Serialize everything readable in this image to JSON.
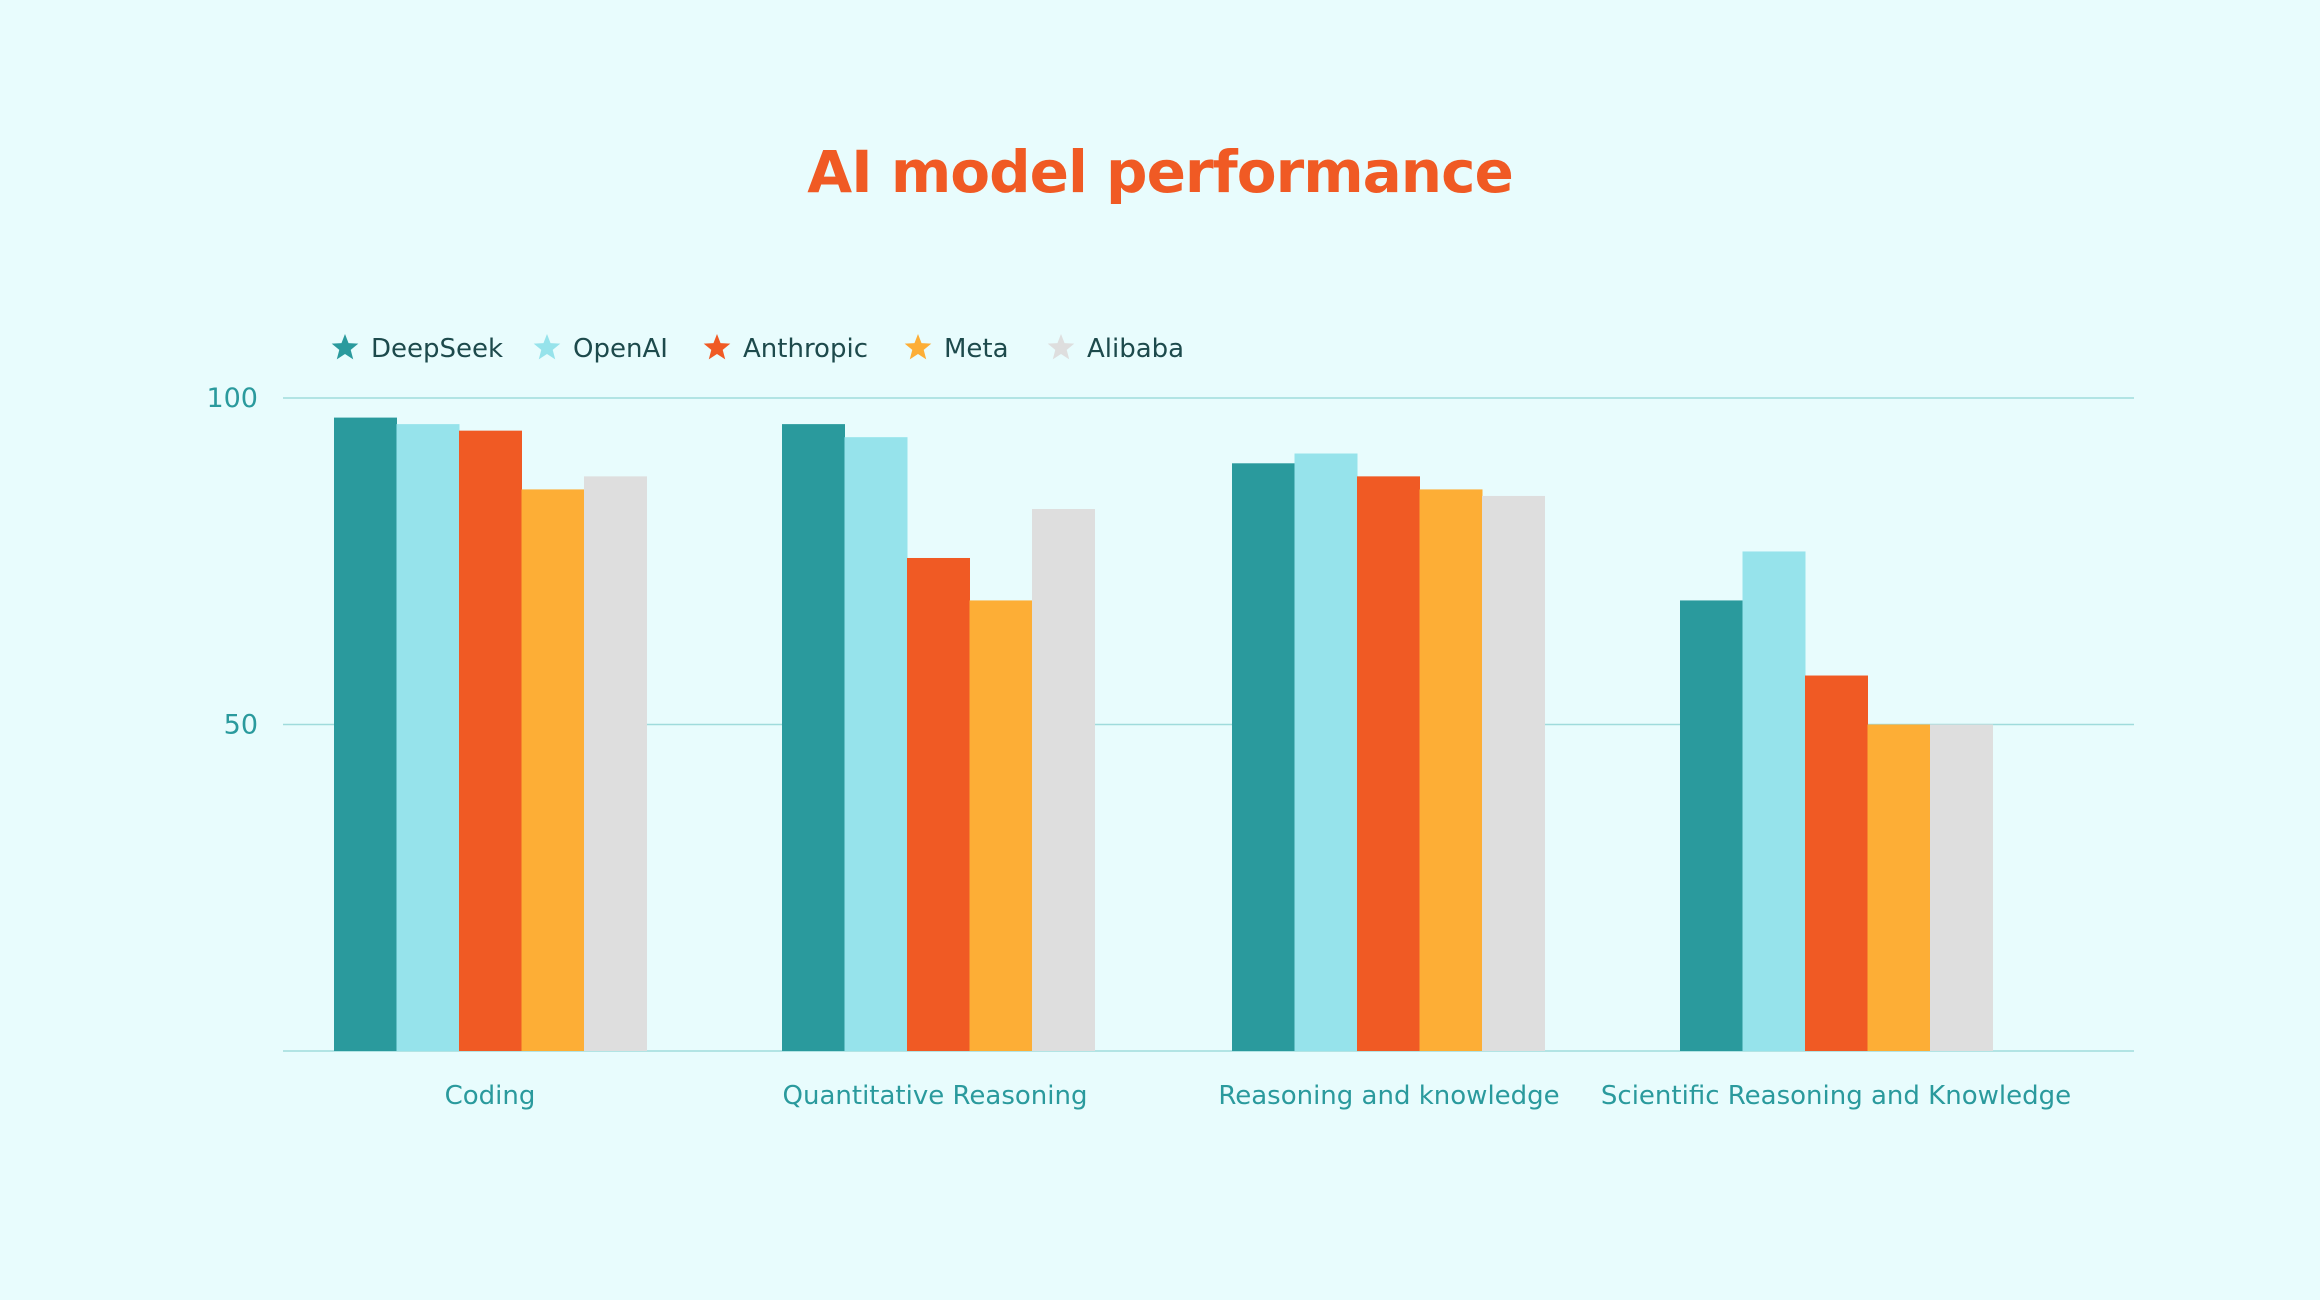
{
  "chart_data": {
    "type": "bar",
    "title": "AI model performance",
    "xlabel": "",
    "ylabel": "",
    "ylim": [
      0,
      100
    ],
    "yticks": [
      50,
      100
    ],
    "grid": true,
    "legend_position": "top-left",
    "categories": [
      "Coding",
      "Quantitative Reasoning",
      "Reasoning and knowledge",
      "Scientific Reasoning and Knowledge"
    ],
    "series": [
      {
        "name": "DeepSeek",
        "color": "#2a9a9d",
        "values": [
          97,
          96,
          90,
          69
        ]
      },
      {
        "name": "OpenAI",
        "color": "#96e3eb",
        "values": [
          96,
          94,
          91.5,
          76.5
        ]
      },
      {
        "name": "Anthropic",
        "color": "#f05a24",
        "values": [
          95,
          75.5,
          88,
          57.5
        ]
      },
      {
        "name": "Meta",
        "color": "#fdae36",
        "values": [
          86,
          69,
          86,
          50
        ]
      },
      {
        "name": "Alibaba",
        "color": "#dedede",
        "values": [
          88,
          83,
          85,
          50
        ]
      }
    ]
  }
}
